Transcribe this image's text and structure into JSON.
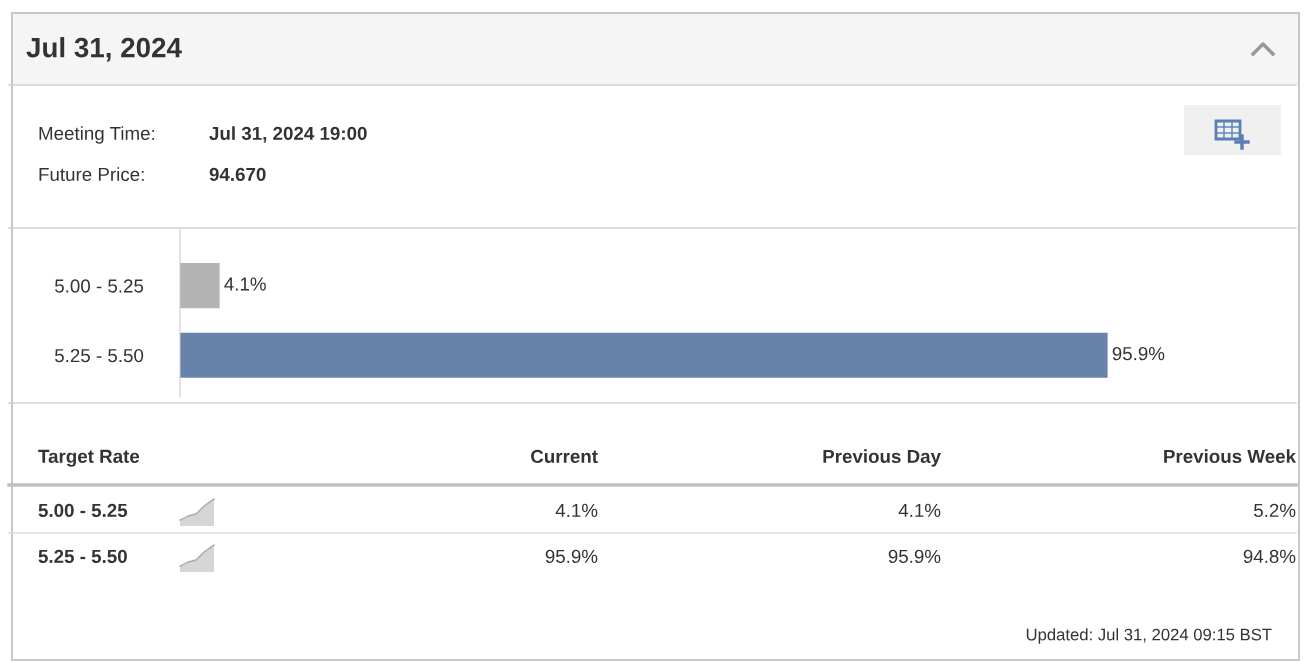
{
  "chart_data": [
    {
      "type": "other",
      "title": "Jul 31, 2024",
      "annotations": [
        "Meeting Time:",
        "Jul 31, 2024 19:00",
        "Future Price:",
        "94.670"
      ]
    },
    {
      "type": "bar",
      "orientation": "horizontal",
      "categories": [
        "5.00 - 5.25",
        "5.25 - 5.50"
      ],
      "values": [
        4.1,
        95.9
      ],
      "colors": [
        "#b3b3b3",
        "#6783aa"
      ],
      "value_labels": [
        "4.1%",
        "95.9%"
      ]
    },
    {
      "type": "other",
      "annotations": [
        "Target Rate",
        "Current",
        "Previous Day",
        "Previous Week",
        "5.00 - 5.25",
        "4.1%",
        "4.1%",
        "5.2%",
        "5.25 - 5.50",
        "95.9%",
        "95.9%",
        "94.8%",
        "Updated: Jul 31, 2024 09:15 BST"
      ]
    }
  ]
}
